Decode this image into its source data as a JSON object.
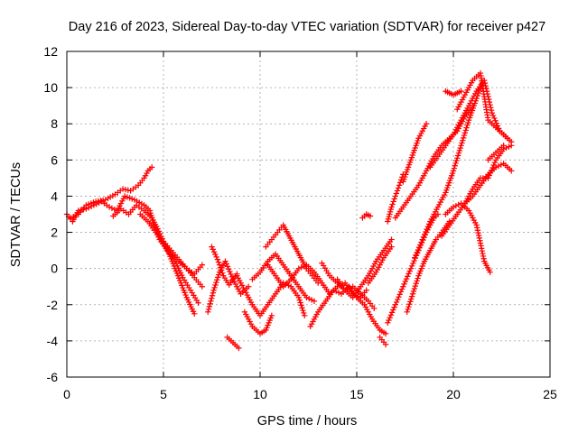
{
  "chart_data": {
    "type": "scatter",
    "title": "Day 216 of 2023, Sidereal Day-to-day VTEC variation (SDTVAR) for receiver p427",
    "xlabel": "GPS time / hours",
    "ylabel": "SDTVAR / TECUs",
    "xlim": [
      0,
      25
    ],
    "ylim": [
      -6,
      12
    ],
    "xticks": [
      "0",
      "5",
      "10",
      "15",
      "20",
      "25"
    ],
    "yticks": [
      "-6",
      "-4",
      "-2",
      "0",
      "2",
      "4",
      "6",
      "8",
      "10",
      "12"
    ],
    "grid": true,
    "marker": "plus",
    "color": "#ff0000",
    "series": [
      {
        "x": [
          0.0,
          0.3,
          0.6,
          1.0,
          1.4,
          1.8,
          2.2,
          2.6,
          3.0,
          3.5,
          4.0,
          4.3,
          4.5,
          4.8,
          5.2,
          5.6,
          6.0,
          6.4,
          6.8
        ],
        "y": [
          3.0,
          2.6,
          3.2,
          3.3,
          3.5,
          3.7,
          3.4,
          3.2,
          4.0,
          3.8,
          3.5,
          3.2,
          2.4,
          1.6,
          1.0,
          0.4,
          -0.5,
          -1.2,
          -1.9
        ]
      },
      {
        "x": [
          0.2,
          0.6,
          1.0,
          1.5,
          2.0,
          2.5,
          2.9,
          3.3,
          3.7,
          4.0,
          4.2,
          4.4
        ],
        "y": [
          2.8,
          3.0,
          3.5,
          3.7,
          3.8,
          4.1,
          4.4,
          4.3,
          4.6,
          5.0,
          5.4,
          5.6
        ]
      },
      {
        "x": [
          2.4,
          2.8,
          3.2,
          3.6,
          4.0,
          4.4,
          4.7,
          5.0,
          5.3,
          5.6,
          5.9,
          6.2,
          6.6
        ],
        "y": [
          2.9,
          3.3,
          3.0,
          3.5,
          3.2,
          2.8,
          2.2,
          1.5,
          0.8,
          0.0,
          -0.8,
          -1.6,
          -2.5
        ]
      },
      {
        "x": [
          3.8,
          4.2,
          4.6,
          5.0,
          5.4,
          5.8,
          6.2,
          6.6,
          7.0
        ],
        "y": [
          3.0,
          2.6,
          2.0,
          1.4,
          0.8,
          0.4,
          0.0,
          -0.5,
          -1.0
        ]
      },
      {
        "x": [
          5.0,
          5.4,
          5.8,
          6.2,
          6.6,
          7.0
        ],
        "y": [
          1.5,
          1.0,
          0.5,
          0.0,
          -0.3,
          0.2
        ]
      },
      {
        "x": [
          7.3,
          7.6,
          7.9,
          8.2,
          8.6,
          9.0,
          9.4
        ],
        "y": [
          -2.4,
          -1.2,
          -0.2,
          0.4,
          -0.6,
          -1.4,
          -1.0
        ]
      },
      {
        "x": [
          7.5,
          7.8,
          8.1,
          8.4,
          8.8
        ],
        "y": [
          1.2,
          0.5,
          -0.4,
          -0.9,
          -0.3
        ]
      },
      {
        "x": [
          8.3,
          8.6,
          8.9
        ],
        "y": [
          -3.8,
          -4.1,
          -4.4
        ]
      },
      {
        "x": [
          8.8,
          9.2,
          9.6,
          10.0,
          10.4,
          10.8,
          11.2,
          11.6,
          12.0,
          12.3
        ],
        "y": [
          -0.4,
          -1.2,
          -2.0,
          -2.6,
          -2.0,
          -1.4,
          -0.8,
          -1.0,
          -1.6,
          -2.6
        ]
      },
      {
        "x": [
          9.2,
          9.6,
          10.0,
          10.3,
          10.6
        ],
        "y": [
          -2.4,
          -3.2,
          -3.6,
          -3.4,
          -2.6
        ]
      },
      {
        "x": [
          9.6,
          10.0,
          10.4,
          10.8,
          11.2,
          11.6,
          12.0,
          12.4,
          12.8
        ],
        "y": [
          -0.6,
          -0.2,
          0.4,
          0.8,
          0.2,
          -0.4,
          -1.0,
          -1.6,
          -1.8
        ]
      },
      {
        "x": [
          10.3,
          10.6,
          10.9,
          11.2,
          11.5,
          11.8,
          12.1,
          12.4,
          12.7,
          13.0
        ],
        "y": [
          1.2,
          1.6,
          2.0,
          2.4,
          1.8,
          1.2,
          0.6,
          0.0,
          -0.4,
          -0.8
        ]
      },
      {
        "x": [
          10.4,
          10.8,
          11.2,
          11.6,
          12.0,
          12.4,
          12.8,
          13.2,
          13.6,
          14.0,
          14.4,
          14.8,
          15.2,
          15.5
        ],
        "y": [
          0.2,
          -0.4,
          -1.0,
          -0.6,
          0.0,
          0.2,
          -0.2,
          -0.8,
          -1.4,
          -1.0,
          -0.8,
          -1.4,
          -1.6,
          -1.2
        ]
      },
      {
        "x": [
          12.6,
          13.0,
          13.4,
          13.8,
          14.2,
          14.6,
          15.0,
          15.4,
          15.8,
          16.2,
          16.5
        ],
        "y": [
          -3.2,
          -2.4,
          -1.8,
          -1.2,
          -1.4,
          -1.0,
          -1.6,
          -2.0,
          -2.8,
          -3.4,
          -3.6
        ]
      },
      {
        "x": [
          13.2,
          13.6,
          14.0,
          14.4,
          14.8,
          15.2,
          15.6,
          15.9
        ],
        "y": [
          0.3,
          -0.4,
          -0.8,
          -1.2,
          -1.0,
          -1.4,
          -1.8,
          -2.2
        ]
      },
      {
        "x": [
          14.0,
          14.4,
          14.8,
          15.2,
          15.6,
          16.0,
          16.4,
          16.8
        ],
        "y": [
          -0.6,
          -1.2,
          -1.6,
          -1.0,
          -0.4,
          0.4,
          1.0,
          1.6
        ]
      },
      {
        "x": [
          15.3,
          15.5,
          15.7
        ],
        "y": [
          2.8,
          3.0,
          2.9
        ]
      },
      {
        "x": [
          15.6,
          16.0,
          16.4,
          16.8
        ],
        "y": [
          -0.8,
          -0.2,
          0.6,
          1.2
        ]
      },
      {
        "x": [
          16.2,
          16.5
        ],
        "y": [
          -3.8,
          -4.2
        ]
      },
      {
        "x": [
          16.6,
          17.0,
          17.4,
          17.8,
          18.2,
          18.6,
          19.0,
          19.2
        ],
        "y": [
          -3.0,
          -2.0,
          -1.0,
          0.0,
          1.0,
          2.0,
          2.8,
          3.0
        ]
      },
      {
        "x": [
          16.6,
          16.8,
          17.0,
          17.2,
          17.4
        ],
        "y": [
          2.6,
          3.4,
          4.0,
          4.6,
          5.2
        ]
      },
      {
        "x": [
          17.0,
          17.4,
          17.8,
          18.2,
          18.6,
          19.0,
          19.4,
          19.8,
          20.2,
          20.6,
          21.0
        ],
        "y": [
          2.8,
          3.4,
          4.0,
          4.6,
          5.4,
          6.2,
          6.8,
          7.2,
          7.6,
          8.4,
          9.0
        ]
      },
      {
        "x": [
          17.4,
          17.8,
          18.2,
          18.6
        ],
        "y": [
          4.8,
          6.0,
          7.2,
          8.0
        ]
      },
      {
        "x": [
          17.6,
          17.9,
          18.2,
          18.5,
          18.8,
          19.1,
          19.4,
          19.8
        ],
        "y": [
          -2.4,
          -1.4,
          -0.4,
          0.4,
          1.0,
          1.6,
          2.0,
          2.6
        ]
      },
      {
        "x": [
          18.0,
          18.4,
          18.8,
          19.2,
          19.6,
          20.0,
          20.4,
          20.8,
          21.2,
          21.4
        ],
        "y": [
          0.6,
          1.6,
          2.6,
          3.4,
          4.2,
          5.4,
          6.8,
          8.2,
          9.4,
          10.0
        ]
      },
      {
        "x": [
          18.8,
          19.2,
          19.6,
          20.0,
          20.4,
          20.8,
          21.2,
          21.6,
          22.0,
          22.4,
          22.8
        ],
        "y": [
          5.6,
          6.2,
          6.8,
          7.4,
          8.2,
          9.0,
          9.8,
          10.4,
          8.6,
          7.6,
          7.2
        ]
      },
      {
        "x": [
          19.4,
          19.8,
          20.2,
          20.6,
          21.0,
          21.4,
          21.8,
          22.2,
          22.6,
          23.0
        ],
        "y": [
          1.8,
          2.4,
          3.0,
          3.6,
          4.4,
          5.0,
          5.0,
          6.0,
          6.6,
          6.8
        ]
      },
      {
        "x": [
          19.6,
          19.8,
          20.0,
          20.2,
          20.4
        ],
        "y": [
          9.8,
          9.7,
          9.6,
          9.7,
          9.8
        ]
      },
      {
        "x": [
          19.6,
          20.0,
          20.4,
          20.8,
          21.2,
          21.6,
          21.9
        ],
        "y": [
          3.0,
          3.4,
          3.6,
          3.2,
          2.4,
          0.4,
          -0.2
        ]
      },
      {
        "x": [
          20.2,
          20.6,
          21.0,
          21.4,
          21.8,
          22.2,
          22.6,
          23.0
        ],
        "y": [
          8.8,
          9.6,
          10.4,
          10.8,
          8.2,
          7.8,
          7.4,
          7.0
        ]
      },
      {
        "x": [
          20.6,
          21.0,
          21.4,
          21.8,
          22.2,
          22.6,
          23.0
        ],
        "y": [
          3.6,
          4.0,
          4.6,
          5.2,
          5.6,
          5.8,
          5.4
        ]
      },
      {
        "x": [
          21.8,
          22.2,
          22.6
        ],
        "y": [
          6.0,
          6.4,
          6.8
        ]
      }
    ]
  }
}
